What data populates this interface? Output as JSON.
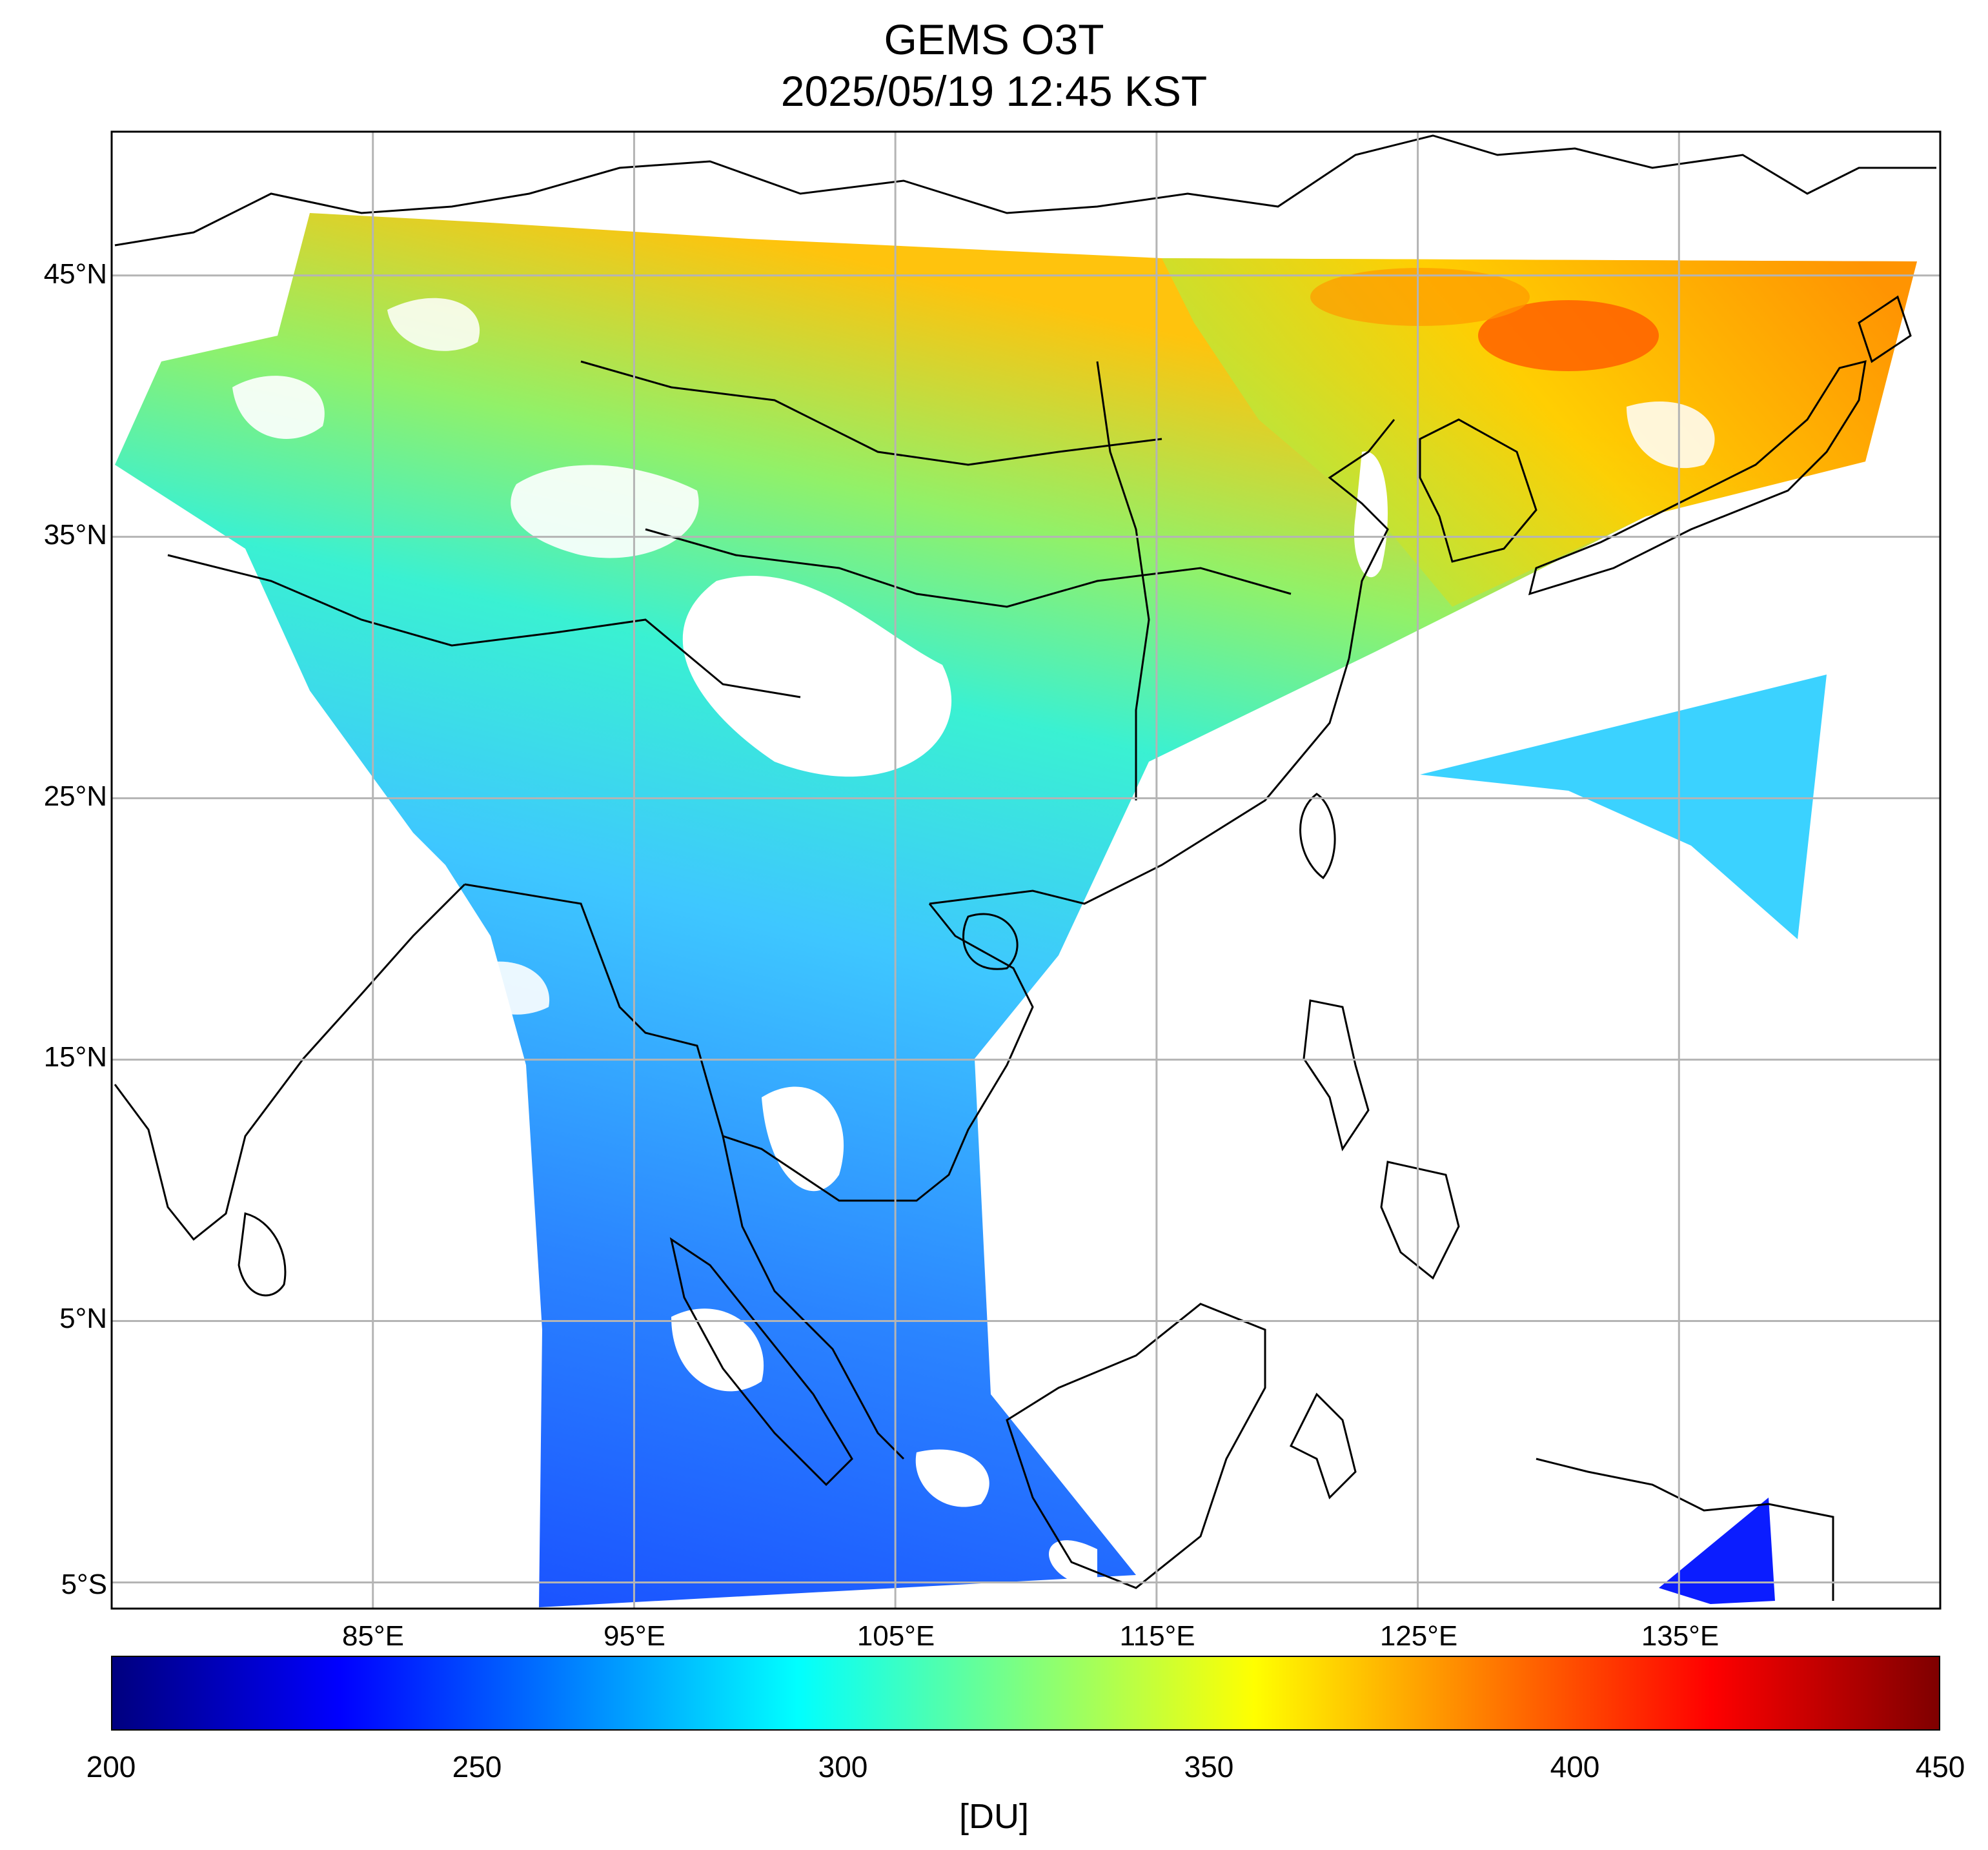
{
  "title": "GEMS O3T",
  "subtitle": "2025/05/19 12:45 KST",
  "map": {
    "lon_range": [
      75,
      145
    ],
    "lat_range": [
      -6,
      50.5
    ],
    "lat_ticks": [
      "45°N",
      "35°N",
      "25°N",
      "15°N",
      "5°N",
      "5°S"
    ],
    "lat_tick_values": [
      45,
      35,
      25,
      15,
      5,
      -5
    ],
    "lon_ticks": [
      "85°E",
      "95°E",
      "105°E",
      "115°E",
      "125°E",
      "135°E"
    ],
    "lon_tick_values": [
      85,
      95,
      105,
      115,
      125,
      135
    ],
    "grid": true
  },
  "colorbar": {
    "min": 200,
    "max": 450,
    "ticks": [
      "200",
      "250",
      "300",
      "350",
      "400",
      "450"
    ],
    "unit": "[DU]",
    "colormap": "jet",
    "colors": [
      "#00007f",
      "#0000ff",
      "#007fff",
      "#00ffff",
      "#7fff7f",
      "#ffff00",
      "#ff7f00",
      "#ff0000",
      "#7f0000"
    ]
  },
  "field_colors": {
    "tropics": "#1a55ff",
    "south_asia": "#2a8cff",
    "tibet": "#35b8ff",
    "north_china": "#30f0c8",
    "northeast": "#c8f040",
    "korea_japan": "#ffb000",
    "peak": "#ff5a00",
    "pacific_swath": "#30d8ff"
  }
}
